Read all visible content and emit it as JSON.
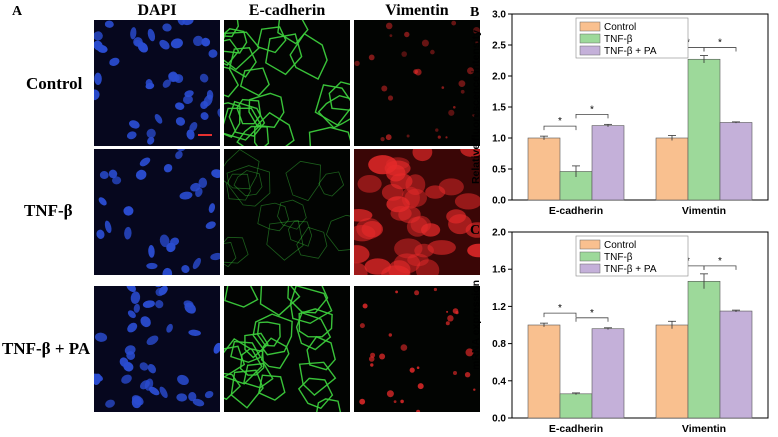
{
  "figure": {
    "panel_a_letter": "A",
    "columns": [
      "DAPI",
      "E-cadherin",
      "Vimentin"
    ],
    "rows": [
      "Control",
      "TNF-β",
      "TNF-β + PA"
    ],
    "colors": {
      "dapi": "#2a4cd0",
      "ecad": "#3ccc3c",
      "vim": "#e52a2a",
      "scale_bar": "#e53030"
    }
  },
  "chart_data": [
    {
      "panel_letter": "B",
      "type": "bar",
      "ylabel": "Relative fluorescence intensity",
      "categories": [
        "E-cadherin",
        "Vimentin"
      ],
      "ylim": [
        0,
        3.0
      ],
      "yticks": [
        "0.0",
        "0.5",
        "1.0",
        "1.5",
        "2.0",
        "2.5",
        "3.0"
      ],
      "legend_position": "top-left",
      "series": [
        {
          "name": "Control",
          "color": "#f9c08f",
          "values": [
            1.0,
            1.0
          ],
          "errors": [
            0.03,
            0.04
          ]
        },
        {
          "name": "TNF-β",
          "color": "#9dd99a",
          "values": [
            0.46,
            2.27
          ],
          "errors": [
            0.09,
            0.06
          ]
        },
        {
          "name": "TNF-β + PA",
          "color": "#c4b0d9",
          "values": [
            1.2,
            1.25
          ],
          "errors": [
            0.02,
            0.01
          ]
        }
      ],
      "significance": "*"
    },
    {
      "panel_letter": "C",
      "type": "bar",
      "ylabel": "mRNA expression",
      "categories": [
        "E-cadherin",
        "Vimentin"
      ],
      "ylim": [
        0,
        2.0
      ],
      "yticks": [
        "0.0",
        "0.4",
        "0.8",
        "1.2",
        "1.6",
        "2.0"
      ],
      "legend_position": "top-left",
      "series": [
        {
          "name": "Control",
          "color": "#f9c08f",
          "values": [
            1.0,
            1.0
          ],
          "errors": [
            0.02,
            0.04
          ]
        },
        {
          "name": "TNF-β",
          "color": "#9dd99a",
          "values": [
            0.26,
            1.47
          ],
          "errors": [
            0.01,
            0.08
          ]
        },
        {
          "name": "TNF-β + PA",
          "color": "#c4b0d9",
          "values": [
            0.96,
            1.15
          ],
          "errors": [
            0.01,
            0.01
          ]
        }
      ],
      "significance": "*"
    }
  ]
}
